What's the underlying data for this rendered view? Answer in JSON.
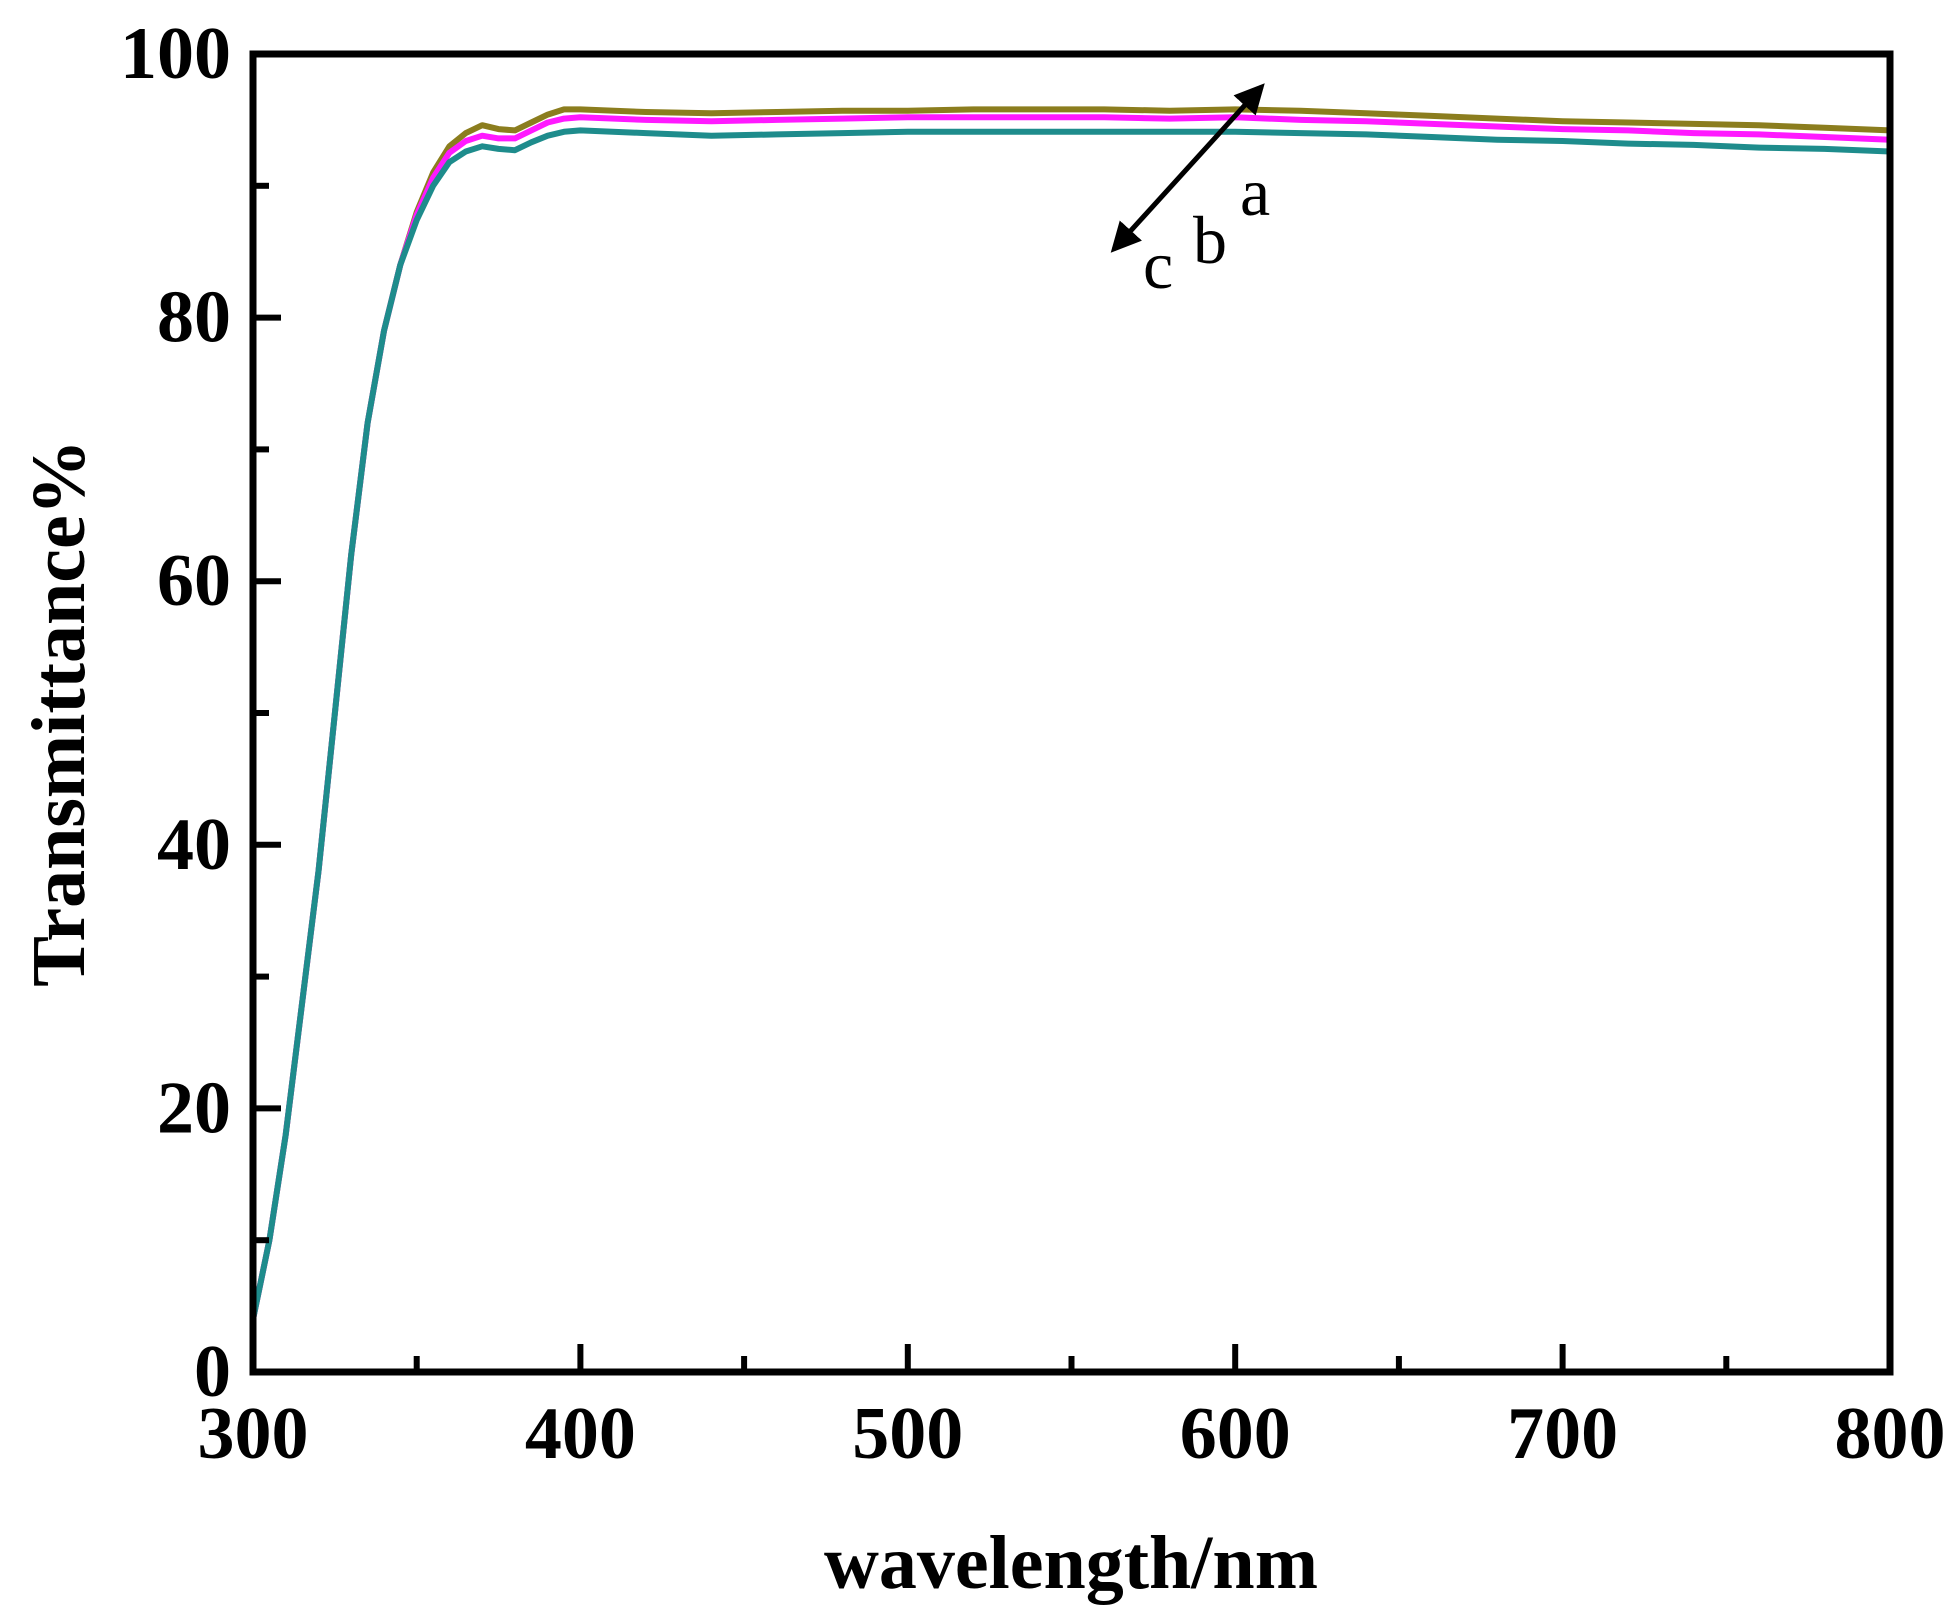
{
  "chart_data": {
    "type": "line",
    "title": "",
    "xlabel": "wavelength/nm",
    "ylabel": "Transmittance%",
    "xlim": [
      300,
      800
    ],
    "ylim": [
      0,
      100
    ],
    "xticks": [
      300,
      400,
      500,
      600,
      700,
      800
    ],
    "yticks": [
      0,
      20,
      40,
      60,
      80,
      100
    ],
    "grid": false,
    "legend": "none",
    "series": [
      {
        "name": "a",
        "color": "#8b7d1e",
        "points": [
          [
            300,
            4
          ],
          [
            305,
            10
          ],
          [
            310,
            18
          ],
          [
            315,
            28
          ],
          [
            320,
            38
          ],
          [
            325,
            50
          ],
          [
            330,
            62
          ],
          [
            335,
            72
          ],
          [
            340,
            79
          ],
          [
            345,
            84
          ],
          [
            350,
            88
          ],
          [
            355,
            91
          ],
          [
            360,
            93
          ],
          [
            365,
            94
          ],
          [
            370,
            94.6
          ],
          [
            375,
            94.3
          ],
          [
            380,
            94.2
          ],
          [
            385,
            94.8
          ],
          [
            390,
            95.4
          ],
          [
            395,
            95.8
          ],
          [
            400,
            95.8
          ],
          [
            420,
            95.6
          ],
          [
            440,
            95.5
          ],
          [
            460,
            95.6
          ],
          [
            480,
            95.7
          ],
          [
            500,
            95.7
          ],
          [
            520,
            95.8
          ],
          [
            540,
            95.8
          ],
          [
            560,
            95.8
          ],
          [
            580,
            95.7
          ],
          [
            600,
            95.8
          ],
          [
            620,
            95.7
          ],
          [
            640,
            95.5
          ],
          [
            660,
            95.3
          ],
          [
            680,
            95.1
          ],
          [
            700,
            94.9
          ],
          [
            720,
            94.8
          ],
          [
            740,
            94.7
          ],
          [
            760,
            94.6
          ],
          [
            780,
            94.4
          ],
          [
            800,
            94.2
          ]
        ]
      },
      {
        "name": "b",
        "color": "#ff19ff",
        "points": [
          [
            300,
            4
          ],
          [
            305,
            10
          ],
          [
            310,
            18
          ],
          [
            315,
            28
          ],
          [
            320,
            38
          ],
          [
            325,
            50
          ],
          [
            330,
            62
          ],
          [
            335,
            72
          ],
          [
            340,
            79
          ],
          [
            345,
            84
          ],
          [
            350,
            87.8
          ],
          [
            355,
            90.6
          ],
          [
            360,
            92.5
          ],
          [
            365,
            93.4
          ],
          [
            370,
            93.8
          ],
          [
            375,
            93.6
          ],
          [
            380,
            93.6
          ],
          [
            385,
            94.2
          ],
          [
            390,
            94.8
          ],
          [
            395,
            95.1
          ],
          [
            400,
            95.2
          ],
          [
            420,
            95
          ],
          [
            440,
            94.9
          ],
          [
            460,
            95
          ],
          [
            480,
            95.1
          ],
          [
            500,
            95.2
          ],
          [
            520,
            95.2
          ],
          [
            540,
            95.2
          ],
          [
            560,
            95.2
          ],
          [
            580,
            95.1
          ],
          [
            600,
            95.2
          ],
          [
            620,
            95
          ],
          [
            640,
            94.9
          ],
          [
            660,
            94.7
          ],
          [
            680,
            94.5
          ],
          [
            700,
            94.3
          ],
          [
            720,
            94.2
          ],
          [
            740,
            94
          ],
          [
            760,
            93.9
          ],
          [
            780,
            93.7
          ],
          [
            800,
            93.5
          ]
        ]
      },
      {
        "name": "c",
        "color": "#1e8c8c",
        "points": [
          [
            300,
            4
          ],
          [
            305,
            10
          ],
          [
            310,
            18
          ],
          [
            315,
            28
          ],
          [
            320,
            38
          ],
          [
            325,
            50
          ],
          [
            330,
            62
          ],
          [
            335,
            72
          ],
          [
            340,
            79
          ],
          [
            345,
            84
          ],
          [
            350,
            87.4
          ],
          [
            355,
            90
          ],
          [
            360,
            91.8
          ],
          [
            365,
            92.6
          ],
          [
            370,
            93
          ],
          [
            375,
            92.8
          ],
          [
            380,
            92.7
          ],
          [
            385,
            93.3
          ],
          [
            390,
            93.8
          ],
          [
            395,
            94.1
          ],
          [
            400,
            94.2
          ],
          [
            420,
            94
          ],
          [
            440,
            93.8
          ],
          [
            460,
            93.9
          ],
          [
            480,
            94
          ],
          [
            500,
            94.1
          ],
          [
            520,
            94.1
          ],
          [
            540,
            94.1
          ],
          [
            560,
            94.1
          ],
          [
            580,
            94.1
          ],
          [
            600,
            94.1
          ],
          [
            620,
            94
          ],
          [
            640,
            93.9
          ],
          [
            660,
            93.7
          ],
          [
            680,
            93.5
          ],
          [
            700,
            93.4
          ],
          [
            720,
            93.2
          ],
          [
            740,
            93.1
          ],
          [
            760,
            92.9
          ],
          [
            780,
            92.8
          ],
          [
            800,
            92.6
          ]
        ]
      }
    ],
    "annotations": {
      "labels": [
        "c",
        "b",
        "a"
      ],
      "arrow": {
        "from": [
          563,
          85.2
        ],
        "to": [
          608,
          97.5
        ],
        "double_headed": true
      }
    }
  }
}
